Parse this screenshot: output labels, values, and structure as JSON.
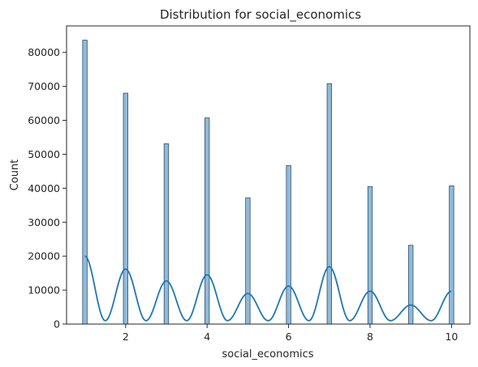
{
  "chart_data": {
    "type": "bar",
    "title": "Distribution for social_economics",
    "xlabel": "social_economics",
    "ylabel": "Count",
    "xlim": [
      0.55,
      10.45
    ],
    "ylim": [
      0,
      87800
    ],
    "xticks": [
      2,
      4,
      6,
      8,
      10
    ],
    "yticks": [
      0,
      10000,
      20000,
      30000,
      40000,
      50000,
      60000,
      70000,
      80000
    ],
    "bar_width": 0.11,
    "grid": false,
    "series": [
      {
        "kind": "histogram",
        "color": "#7eaed3",
        "edge_color": "#2f4f6b",
        "x": [
          1,
          2,
          3,
          4,
          5,
          6,
          7,
          8,
          9,
          10
        ],
        "values": [
          83600,
          68000,
          53100,
          60700,
          37200,
          46700,
          70800,
          40500,
          23200,
          40700
        ]
      },
      {
        "kind": "kde",
        "color": "#1f77b4",
        "x": [
          1,
          2,
          3,
          4,
          5,
          6,
          7,
          8,
          9,
          10
        ],
        "peaks": [
          20000,
          16200,
          12700,
          14500,
          9000,
          11200,
          16900,
          9700,
          5600,
          9700
        ],
        "trough": 1000
      }
    ]
  }
}
